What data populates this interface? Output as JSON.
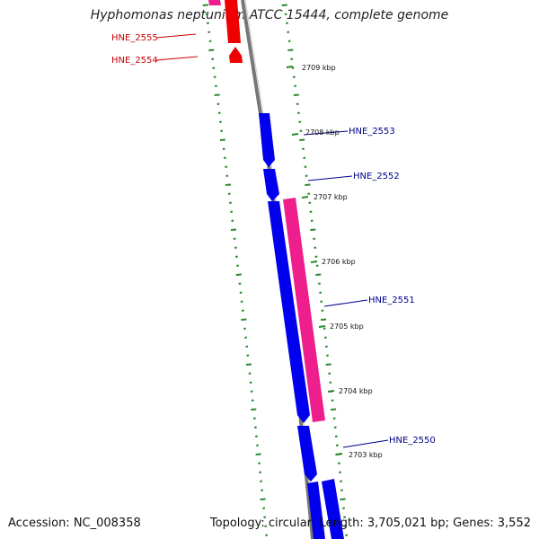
{
  "title": "Hyphomonas neptunium ATCC 15444, complete genome",
  "footer": {
    "accession": "Accession: NC_008358",
    "summary": "Topology: circular; Length: 3,705,021 bp; Genes: 3,552"
  },
  "colors": {
    "forward_cds": "#0000ee",
    "reverse_cds": "#ee1f8c",
    "rna": "#ee0000",
    "backbone": "#777777",
    "tick": "#2a8a2a",
    "label_forward": "#00008b",
    "label_reverse": "#cc0000"
  },
  "genes": [
    {
      "id": "HNE_2555",
      "color_key": "label_reverse"
    },
    {
      "id": "HNE_2554",
      "color_key": "label_reverse"
    },
    {
      "id": "HNE_2553",
      "color_key": "label_forward"
    },
    {
      "id": "HNE_2552",
      "color_key": "label_forward"
    },
    {
      "id": "HNE_2551",
      "color_key": "label_forward"
    },
    {
      "id": "HNE_2550",
      "color_key": "label_forward"
    }
  ],
  "scale_ticks": [
    "2709 kbp",
    "2708 kbp",
    "2707 kbp",
    "2706 kbp",
    "2705 kbp",
    "2704 kbp",
    "2703 kbp"
  ]
}
